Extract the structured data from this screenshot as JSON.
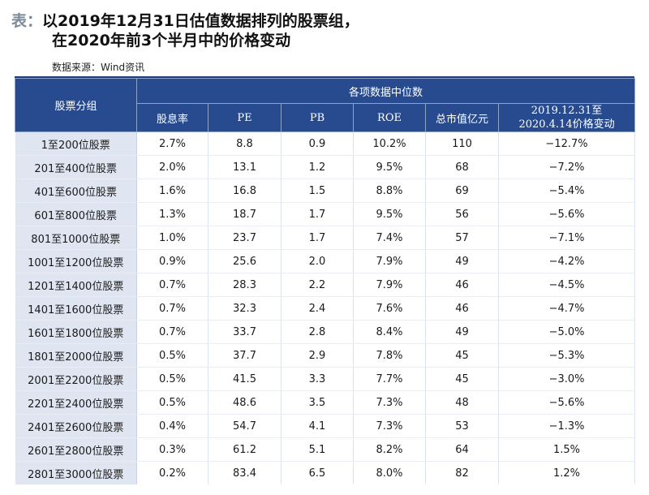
{
  "title": {
    "prefix": "表：",
    "line1": "以2019年12月31日估值数据排列的股票组，",
    "line2": "在2020年前3个半月中的价格变动"
  },
  "source": "数据来源：Wind资讯",
  "table": {
    "group_header": "股票分组",
    "median_header": "各项数据中位数",
    "columns": [
      "股息率",
      "PE",
      "PB",
      "ROE",
      "总市值亿元"
    ],
    "change_header_line1": "2019.12.31至",
    "change_header_line2": "2020.4.14价格变动",
    "rows": [
      {
        "group": "1至200位股票",
        "dividend": "2.7%",
        "pe": "8.8",
        "pb": "0.9",
        "roe": "10.2%",
        "cap": "110",
        "change": "−12.7%"
      },
      {
        "group": "201至400位股票",
        "dividend": "2.0%",
        "pe": "13.1",
        "pb": "1.2",
        "roe": "9.5%",
        "cap": "68",
        "change": "−7.2%"
      },
      {
        "group": "401至600位股票",
        "dividend": "1.6%",
        "pe": "16.8",
        "pb": "1.5",
        "roe": "8.8%",
        "cap": "69",
        "change": "−5.4%"
      },
      {
        "group": "601至800位股票",
        "dividend": "1.3%",
        "pe": "18.7",
        "pb": "1.7",
        "roe": "9.5%",
        "cap": "56",
        "change": "−5.6%"
      },
      {
        "group": "801至1000位股票",
        "dividend": "1.0%",
        "pe": "23.7",
        "pb": "1.7",
        "roe": "7.4%",
        "cap": "57",
        "change": "−7.1%"
      },
      {
        "group": "1001至1200位股票",
        "dividend": "0.9%",
        "pe": "25.6",
        "pb": "2.0",
        "roe": "7.9%",
        "cap": "49",
        "change": "−4.2%"
      },
      {
        "group": "1201至1400位股票",
        "dividend": "0.7%",
        "pe": "28.3",
        "pb": "2.2",
        "roe": "7.9%",
        "cap": "46",
        "change": "−4.5%"
      },
      {
        "group": "1401至1600位股票",
        "dividend": "0.7%",
        "pe": "32.3",
        "pb": "2.4",
        "roe": "7.6%",
        "cap": "46",
        "change": "−4.7%"
      },
      {
        "group": "1601至1800位股票",
        "dividend": "0.7%",
        "pe": "33.7",
        "pb": "2.8",
        "roe": "8.4%",
        "cap": "49",
        "change": "−5.0%"
      },
      {
        "group": "1801至2000位股票",
        "dividend": "0.5%",
        "pe": "37.7",
        "pb": "2.9",
        "roe": "7.8%",
        "cap": "45",
        "change": "−5.3%"
      },
      {
        "group": "2001至2200位股票",
        "dividend": "0.5%",
        "pe": "41.5",
        "pb": "3.3",
        "roe": "7.7%",
        "cap": "45",
        "change": "−3.0%"
      },
      {
        "group": "2201至2400位股票",
        "dividend": "0.5%",
        "pe": "48.6",
        "pb": "3.5",
        "roe": "7.3%",
        "cap": "48",
        "change": "−5.6%"
      },
      {
        "group": "2401至2600位股票",
        "dividend": "0.4%",
        "pe": "54.7",
        "pb": "4.1",
        "roe": "7.3%",
        "cap": "53",
        "change": "−1.3%"
      },
      {
        "group": "2601至2800位股票",
        "dividend": "0.3%",
        "pe": "61.2",
        "pb": "5.1",
        "roe": "8.2%",
        "cap": "64",
        "change": "1.5%"
      },
      {
        "group": "2801至3000位股票",
        "dividend": "0.2%",
        "pe": "83.4",
        "pb": "6.5",
        "roe": "8.0%",
        "cap": "82",
        "change": "1.2%"
      }
    ]
  }
}
